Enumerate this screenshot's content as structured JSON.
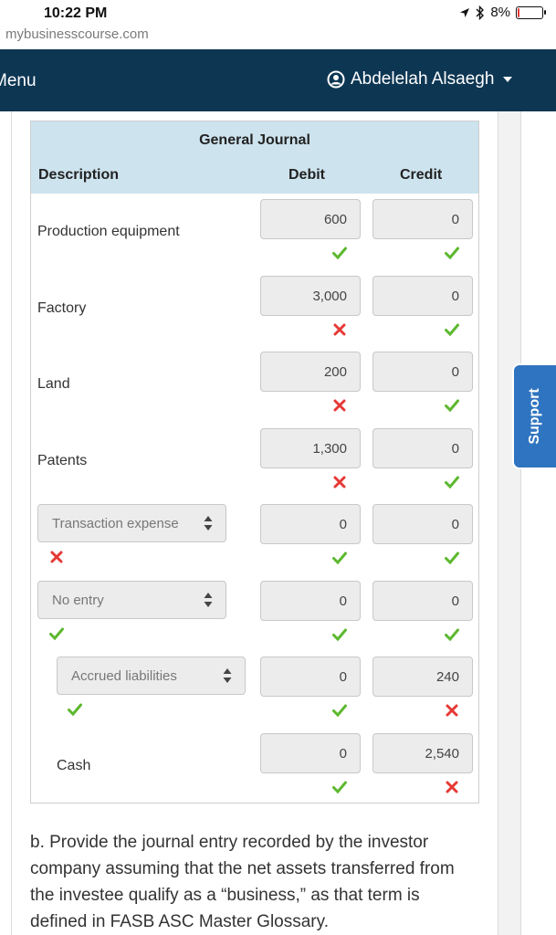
{
  "status": {
    "time": "10:22 PM",
    "battery": "8%",
    "battery_level": 0.08
  },
  "browser": {
    "url": "mybusinesscourse.com"
  },
  "nav": {
    "menu_label": "Menu",
    "user_name": "Abdelelah Alsaegh"
  },
  "support": {
    "label": "Support"
  },
  "journal": {
    "title": "General Journal",
    "columns": {
      "description": "Description",
      "debit": "Debit",
      "credit": "Credit"
    },
    "rows": [
      {
        "account": "Production equipment",
        "type": "text",
        "account_mark": "",
        "debit": "600",
        "debit_mark": "check",
        "credit": "0",
        "credit_mark": "check"
      },
      {
        "account": "Factory",
        "type": "text",
        "account_mark": "",
        "debit": "3,000",
        "debit_mark": "cross",
        "credit": "0",
        "credit_mark": "check"
      },
      {
        "account": "Land",
        "type": "text",
        "account_mark": "",
        "debit": "200",
        "debit_mark": "cross",
        "credit": "0",
        "credit_mark": "check"
      },
      {
        "account": "Patents",
        "type": "text",
        "account_mark": "",
        "debit": "1,300",
        "debit_mark": "cross",
        "credit": "0",
        "credit_mark": "check"
      },
      {
        "account": "Transaction expense",
        "type": "select",
        "account_mark": "cross",
        "debit": "0",
        "debit_mark": "check",
        "credit": "0",
        "credit_mark": "check"
      },
      {
        "account": "No entry",
        "type": "select",
        "account_mark": "check",
        "debit": "0",
        "debit_mark": "check",
        "credit": "0",
        "credit_mark": "check"
      },
      {
        "account": "Accrued liabilities",
        "type": "select-indent",
        "account_mark": "check",
        "debit": "0",
        "debit_mark": "check",
        "credit": "240",
        "credit_mark": "cross"
      },
      {
        "account": "Cash",
        "type": "text-indent",
        "account_mark": "",
        "debit": "0",
        "debit_mark": "check",
        "credit": "2,540",
        "credit_mark": "cross"
      }
    ]
  },
  "question": {
    "text": "b. Provide the journal entry recorded by the investor company assuming that the net assets transferred from the investee qualify as a “business,” as that term is defined in FASB ASC Master Glossary."
  },
  "colors": {
    "nav_bg": "#0d3653",
    "header_bg": "#cde3ee",
    "check": "#5cb82e",
    "cross": "#e53935",
    "support_bg": "#2f74c0"
  }
}
